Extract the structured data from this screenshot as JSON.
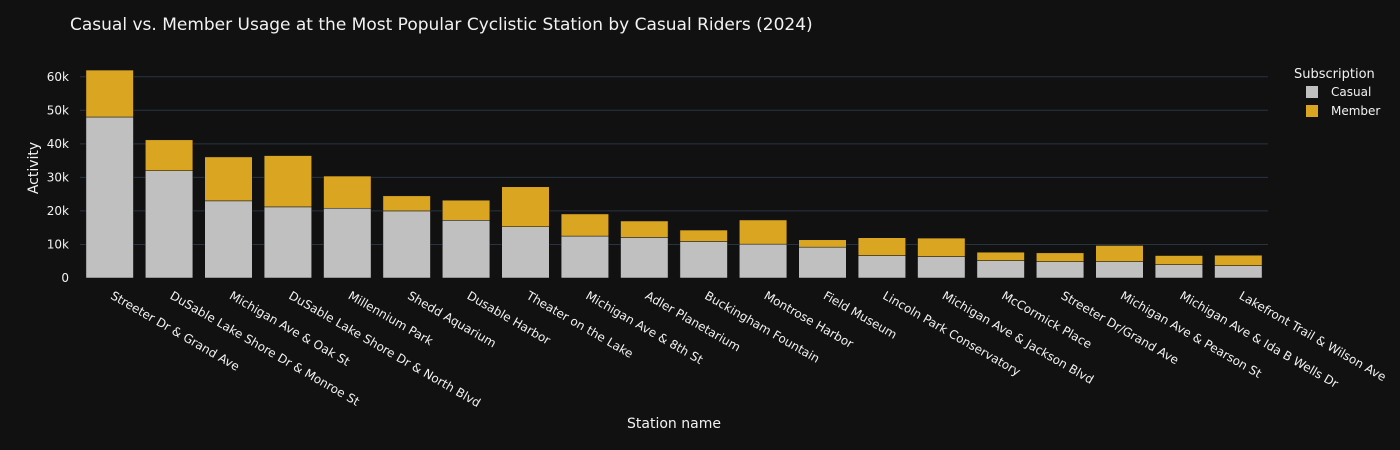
{
  "chart_data": {
    "type": "bar",
    "stacked": true,
    "title": "Casual vs. Member Usage at the Most Popular Cyclistic Station by Casual Riders (2024)",
    "xlabel": "Station name",
    "ylabel": "Activity",
    "ylim": [
      0,
      65000
    ],
    "yticks": [
      0,
      10000,
      20000,
      30000,
      40000,
      50000,
      60000
    ],
    "ytick_labels": [
      "0",
      "10k",
      "20k",
      "30k",
      "40k",
      "50k",
      "60k"
    ],
    "grid": true,
    "legend": {
      "title": "Subscription",
      "placement": "top-right"
    },
    "categories": [
      "Streeter Dr & Grand Ave",
      "DuSable Lake Shore Dr & Monroe St",
      "Michigan Ave & Oak St",
      "DuSable Lake Shore Dr & North Blvd",
      "Millennium Park",
      "Shedd Aquarium",
      "Dusable Harbor",
      "Theater on the Lake",
      "Michigan Ave & 8th St",
      "Adler Planetarium",
      "Buckingham Fountain",
      "Montrose Harbor",
      "Field Museum",
      "Lincoln Park Conservatory",
      "Michigan Ave & Jackson Blvd",
      "McCormick Place",
      "Streeter Dr/Grand Ave",
      "Michigan Ave & Pearson St",
      "Michigan Ave & Ida B Wells Dr",
      "Lakefront Trail & Wilson Ave"
    ],
    "series": [
      {
        "name": "Casual",
        "color": "#c0c0c0",
        "values": [
          48000,
          32000,
          23000,
          21200,
          20800,
          20000,
          17200,
          15300,
          12500,
          12100,
          10900,
          10100,
          9200,
          6700,
          6400,
          5200,
          4900,
          4900,
          4000,
          3700
        ]
      },
      {
        "name": "Member",
        "color": "#daa520",
        "values": [
          14000,
          9200,
          13100,
          15300,
          9600,
          4500,
          6000,
          11900,
          6600,
          4900,
          3400,
          7200,
          2200,
          5300,
          5500,
          2500,
          2600,
          4800,
          2700,
          3100
        ]
      }
    ]
  }
}
